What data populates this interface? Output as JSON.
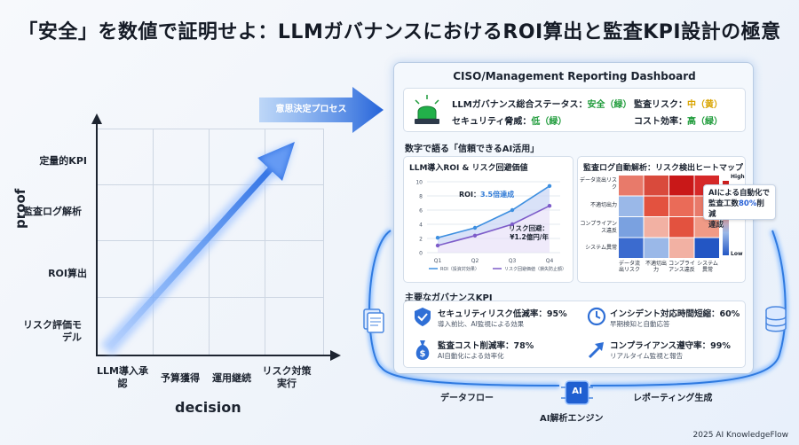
{
  "title": "「安全」を数値で証明せよ：LLMガバナンスにおけるROI算出と監査KPI設計の極意",
  "left_chart": {
    "y_axis_title": "proof",
    "x_axis_title": "decision",
    "y_levels": [
      "定量的KPI",
      "監査ログ解析",
      "ROI算出",
      "リスク評価モデル"
    ],
    "x_levels": [
      "LLM導入承認",
      "予算獲得",
      "運用継続",
      "リスク対策実行"
    ],
    "decision_banner": "意思決定プロセス"
  },
  "dashboard": {
    "title": "CISO/Management Reporting Dashboard",
    "status": {
      "overall_label": "LLMガバナンス総合ステータス：",
      "overall_value": "安全（緑）",
      "threat_label": "セキュリティ脅威：",
      "threat_value": "低（緑）",
      "audit_label": "監査リスク：",
      "audit_value": "中（黄）",
      "cost_label": "コスト効率：",
      "cost_value": "高（緑）"
    },
    "section_ai": "数字で語る「信頼できるAI活用」",
    "roi_panel": {
      "title": "LLM導入ROI & リスク回避価値",
      "roi_annotation_prefix": "ROI：",
      "roi_annotation_value": "3.5倍達成",
      "risk_annotation_1": "リスク回避：",
      "risk_annotation_2": "¥1.2億円/年"
    },
    "heatmap_panel": {
      "title": "監査ログ自動解析：リスク検出ヒートマップ",
      "rows": [
        "データ流出リスク",
        "不適切出力",
        "コンプライアンス違反",
        "システム異常"
      ],
      "cols": [
        "データ流出リスク",
        "不適切出力",
        "コンプライアンス違反",
        "システム異常"
      ],
      "legend_high": "High",
      "legend_low": "Low",
      "callout_1": "AIによる自動化で",
      "callout_2a": "監査工数",
      "callout_2b": "80%",
      "callout_2c": "削減",
      "callout_3": "達成"
    },
    "kpi_section": "主要なガバナンスKPI",
    "kpis": [
      {
        "main": "セキュリティリスク低減率：95%",
        "sub": "導入前比、AI監視による効果"
      },
      {
        "main": "インシデント対応時間短縮：60%",
        "sub": "早期検知と自動応答"
      },
      {
        "main": "監査コスト削減率：78%",
        "sub": "AI自動化による効率化"
      },
      {
        "main": "コンプライアンス遵守率：99%",
        "sub": "リアルタイム監視と報告"
      }
    ]
  },
  "flow": {
    "left": "データフロー",
    "right": "レポーティング生成",
    "engine_icon": "AI",
    "engine_label": "AI解析エンジン"
  },
  "footer": "2025 AI KnowledgeFlow",
  "chart_data": {
    "type": "line",
    "title": "LLM導入ROI & リスク回避価値",
    "categories": [
      "Q1",
      "Q2",
      "Q3",
      "Q4"
    ],
    "ylim": [
      0,
      10
    ],
    "yticks": [
      0,
      2,
      4,
      6,
      8,
      10
    ],
    "series": [
      {
        "name": "ROI（投資対効果）",
        "color": "#3d8fe0",
        "values": [
          2.1,
          3.5,
          6.0,
          9.4
        ]
      },
      {
        "name": "リスク回避価値（損失防止額）",
        "color": "#7d5cc9",
        "values": [
          1.0,
          2.4,
          4.0,
          6.6
        ]
      }
    ],
    "colors": {
      "grid": "#e3e8ef"
    }
  }
}
